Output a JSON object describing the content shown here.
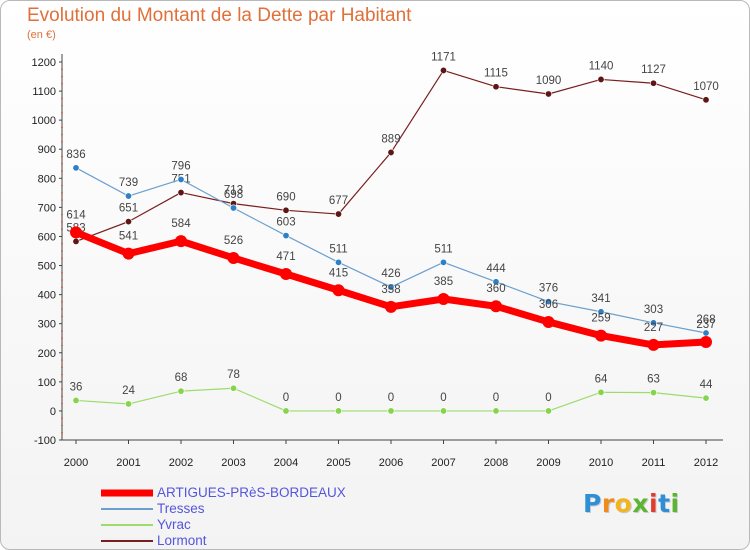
{
  "title": "Evolution du Montant de la Dette par Habitant",
  "subtitle": "(en €)",
  "logo": {
    "letters": [
      "P",
      "r",
      "o",
      "x",
      "i",
      "t",
      "i"
    ],
    "colors": [
      "#2e8fd6",
      "#f08a1c",
      "#f2b51f",
      "#5cb531",
      "#e23c2f",
      "#2e8fd6",
      "#5cb531"
    ]
  },
  "chart_data": {
    "type": "line",
    "x": [
      "2000",
      "2001",
      "2002",
      "2003",
      "2004",
      "2005",
      "2006",
      "2007",
      "2008",
      "2009",
      "2010",
      "2011",
      "2012"
    ],
    "ylim": [
      -100,
      1200
    ],
    "yticks": [
      -100,
      0,
      100,
      200,
      300,
      400,
      500,
      600,
      700,
      800,
      900,
      1000,
      1100,
      1200
    ],
    "grid": false,
    "legend_position": "bottom-left",
    "series": [
      {
        "name": "Lormont",
        "color": "#7a1f1f",
        "marker": "#5e1515",
        "width": 1.2,
        "label_offset": -10,
        "values": [
          583,
          651,
          751,
          713,
          690,
          677,
          889,
          1171,
          1115,
          1090,
          1140,
          1127,
          1070
        ]
      },
      {
        "name": "Tresses",
        "color": "#6a9fcf",
        "marker": "#2f7fc6",
        "width": 1.2,
        "label_offset": -10,
        "values": [
          836,
          739,
          796,
          698,
          603,
          511,
          426,
          511,
          444,
          376,
          341,
          303,
          268
        ]
      },
      {
        "name": "Yvrac",
        "color": "#9ddc6c",
        "marker": "#86d44c",
        "width": 1.2,
        "label_offset": -10,
        "values": [
          36,
          24,
          68,
          78,
          0,
          0,
          0,
          0,
          0,
          0,
          64,
          63,
          44
        ]
      },
      {
        "name": "ARTIGUES-PRèS-BORDEAUX",
        "color": "#ff0000",
        "marker": "#ff0000",
        "width": 7,
        "label_offset": -14,
        "values": [
          614,
          541,
          584,
          526,
          471,
          415,
          358,
          385,
          360,
          306,
          259,
          227,
          237
        ]
      }
    ],
    "legend": [
      {
        "name": "ARTIGUES-PRèS-BORDEAUX",
        "color": "#ff0000",
        "width": 7
      },
      {
        "name": "Tresses",
        "color": "#6a9fcf",
        "width": 2
      },
      {
        "name": "Yvrac",
        "color": "#9ddc6c",
        "width": 2
      },
      {
        "name": "Lormont",
        "color": "#7a1f1f",
        "width": 2
      }
    ]
  }
}
